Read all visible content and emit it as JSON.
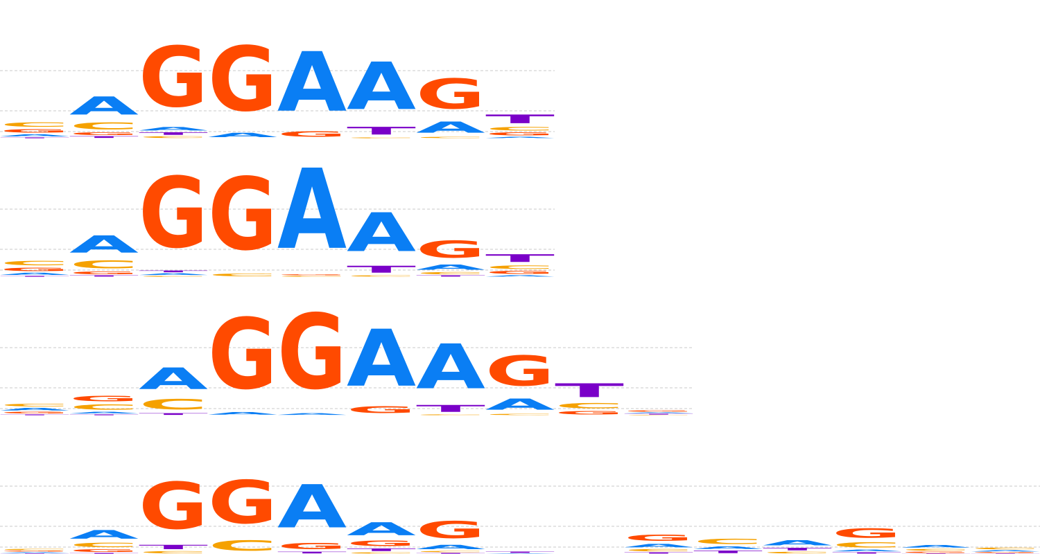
{
  "colors": {
    "A": "#0a7ef4",
    "C": "#f5a100",
    "G": "#ff4a00",
    "T": "#7a00c8",
    "grid": "#c8c8c8"
  },
  "logos": [
    {
      "name": "motif-logo-1",
      "columns": [
        [
          [
            "C",
            0.1
          ],
          [
            "G",
            0.08
          ],
          [
            "A",
            0.05
          ],
          [
            "T",
            0.02
          ]
        ],
        [
          [
            "A",
            0.42
          ],
          [
            "C",
            0.16
          ],
          [
            "G",
            0.06
          ],
          [
            "T",
            0.04
          ]
        ],
        [
          [
            "G",
            1.4
          ],
          [
            "A",
            0.08
          ],
          [
            "T",
            0.06
          ],
          [
            "C",
            0.04
          ]
        ],
        [
          [
            "G",
            1.5
          ],
          [
            "A",
            0.1
          ]
        ],
        [
          [
            "A",
            1.38
          ],
          [
            "G",
            0.12
          ]
        ],
        [
          [
            "A",
            1.1
          ],
          [
            "T",
            0.18
          ],
          [
            "C",
            0.02
          ]
        ],
        [
          [
            "G",
            0.7
          ],
          [
            "A",
            0.26
          ],
          [
            "C",
            0.03
          ]
        ],
        [
          [
            "T",
            0.2
          ],
          [
            "C",
            0.08
          ],
          [
            "G",
            0.07
          ],
          [
            "A",
            0.03
          ]
        ]
      ]
    },
    {
      "name": "motif-logo-2",
      "columns": [
        [
          [
            "C",
            0.1
          ],
          [
            "G",
            0.08
          ],
          [
            "A",
            0.05
          ],
          [
            "T",
            0.02
          ]
        ],
        [
          [
            "A",
            0.4
          ],
          [
            "C",
            0.18
          ],
          [
            "G",
            0.06
          ],
          [
            "T",
            0.03
          ]
        ],
        [
          [
            "G",
            1.64
          ],
          [
            "A",
            0.04
          ],
          [
            "T",
            0.04
          ],
          [
            "C",
            0.02
          ]
        ],
        [
          [
            "G",
            1.68
          ],
          [
            "C",
            0.06
          ]
        ],
        [
          [
            "A",
            1.86
          ],
          [
            "C",
            0.02
          ],
          [
            "G",
            0.02
          ]
        ],
        [
          [
            "A",
            0.9
          ],
          [
            "T",
            0.16
          ],
          [
            "C",
            0.03
          ]
        ],
        [
          [
            "G",
            0.4
          ],
          [
            "A",
            0.12
          ],
          [
            "C",
            0.05
          ],
          [
            "T",
            0.03
          ]
        ],
        [
          [
            "T",
            0.18
          ],
          [
            "C",
            0.08
          ],
          [
            "G",
            0.07
          ],
          [
            "A",
            0.03
          ]
        ]
      ]
    },
    {
      "name": "motif-logo-3",
      "columns": [
        [
          [
            "A",
            0.06
          ],
          [
            "C",
            0.06
          ],
          [
            "G",
            0.04
          ],
          [
            "T",
            0.02
          ]
        ],
        [
          [
            "C",
            0.12
          ],
          [
            "G",
            0.12
          ],
          [
            "A",
            0.04
          ],
          [
            "T",
            0.02
          ]
        ],
        [
          [
            "A",
            0.5
          ],
          [
            "C",
            0.24
          ],
          [
            "T",
            0.04
          ]
        ],
        [
          [
            "G",
            1.64
          ],
          [
            "A",
            0.06
          ]
        ],
        [
          [
            "G",
            1.74
          ],
          [
            "A",
            0.04
          ]
        ],
        [
          [
            "A",
            1.32
          ],
          [
            "G",
            0.16
          ]
        ],
        [
          [
            "A",
            1.04
          ],
          [
            "T",
            0.16
          ],
          [
            "C",
            0.02
          ]
        ],
        [
          [
            "G",
            0.7
          ],
          [
            "A",
            0.26
          ],
          [
            "C",
            0.03
          ]
        ],
        [
          [
            "T",
            0.32
          ],
          [
            "C",
            0.12
          ],
          [
            "G",
            0.08
          ]
        ],
        [
          [
            "G",
            0.03
          ],
          [
            "T",
            0.02
          ],
          [
            "A",
            0.02
          ],
          [
            "C",
            0.01
          ]
        ]
      ]
    },
    {
      "name": "motif-logo-4",
      "columns": [
        [
          [
            "C",
            0.03
          ],
          [
            "A",
            0.02
          ],
          [
            "G",
            0.02
          ],
          [
            "T",
            0.01
          ]
        ],
        [
          [
            "A",
            0.2
          ],
          [
            "C",
            0.1
          ],
          [
            "G",
            0.06
          ],
          [
            "T",
            0.02
          ]
        ],
        [
          [
            "G",
            1.08
          ],
          [
            "T",
            0.1
          ],
          [
            "C",
            0.05
          ]
        ],
        [
          [
            "G",
            1.0
          ],
          [
            "C",
            0.24
          ]
        ],
        [
          [
            "A",
            1.0
          ],
          [
            "G",
            0.14
          ],
          [
            "T",
            0.04
          ]
        ],
        [
          [
            "A",
            0.3
          ],
          [
            "G",
            0.12
          ],
          [
            "T",
            0.06
          ],
          [
            "C",
            0.03
          ]
        ],
        [
          [
            "G",
            0.4
          ],
          [
            "A",
            0.1
          ],
          [
            "C",
            0.03
          ],
          [
            "T",
            0.02
          ]
        ],
        [
          [
            "T",
            0.03
          ],
          [
            "A",
            0.01
          ]
        ],
        [],
        [
          [
            "G",
            0.14
          ],
          [
            "A",
            0.08
          ],
          [
            "C",
            0.05
          ],
          [
            "T",
            0.03
          ]
        ],
        [
          [
            "C",
            0.12
          ],
          [
            "T",
            0.06
          ],
          [
            "A",
            0.06
          ]
        ],
        [
          [
            "A",
            0.12
          ],
          [
            "T",
            0.06
          ],
          [
            "C",
            0.04
          ]
        ],
        [
          [
            "G",
            0.22
          ],
          [
            "C",
            0.12
          ],
          [
            "A",
            0.04
          ],
          [
            "T",
            0.03
          ]
        ],
        [
          [
            "A",
            0.06
          ],
          [
            "C",
            0.04
          ],
          [
            "G",
            0.03
          ],
          [
            "T",
            0.01
          ]
        ],
        [
          [
            "C",
            0.04
          ],
          [
            "A",
            0.03
          ],
          [
            "G",
            0.02
          ],
          [
            "T",
            0.01
          ]
        ]
      ]
    }
  ]
}
